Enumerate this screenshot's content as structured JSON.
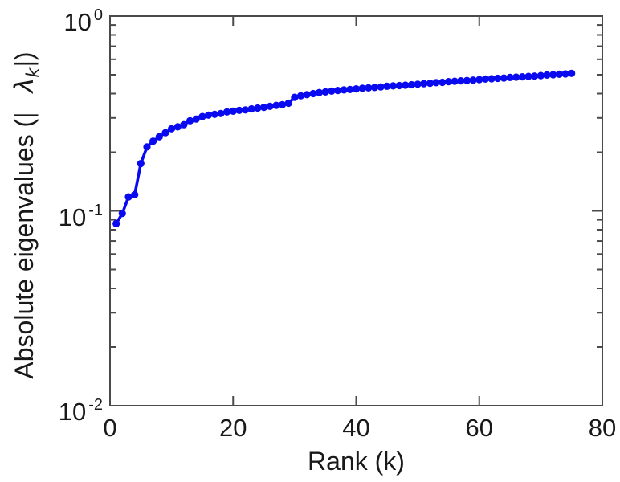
{
  "chart_data": {
    "type": "line",
    "title": "",
    "xlabel": "Rank (k)",
    "ylabel": "Absolute eigenvalues (|λ_k|)",
    "ylabel_parts": {
      "prefix": "Absolute eigenvalues (|",
      "symbol": "λ",
      "subscript": "k",
      "suffix": "|)"
    },
    "xscale": "linear",
    "yscale": "log",
    "xlim": [
      0,
      80
    ],
    "ylim": [
      0.01,
      1
    ],
    "grid": false,
    "legend": "none",
    "axis_color": "#4a4a4a",
    "text_color": "#191919",
    "xticks": [
      {
        "value": 0,
        "label": "0"
      },
      {
        "value": 20,
        "label": "20"
      },
      {
        "value": 40,
        "label": "40"
      },
      {
        "value": 60,
        "label": "60"
      },
      {
        "value": 80,
        "label": "80"
      }
    ],
    "yticks": [
      {
        "value": 1,
        "base": "10",
        "exp": "0"
      },
      {
        "value": 0.1,
        "base": "10",
        "exp": "-1"
      },
      {
        "value": 0.01,
        "base": "10",
        "exp": "-2"
      }
    ],
    "y_minor_ticks": [
      0.02,
      0.03,
      0.04,
      0.05,
      0.06,
      0.07,
      0.08,
      0.09,
      0.2,
      0.3,
      0.4,
      0.5,
      0.6,
      0.7,
      0.8,
      0.9
    ],
    "series": [
      {
        "name": "absolute-eigenvalues",
        "color": "#0a0af0",
        "marker": "filled-circle",
        "x": [
          1,
          2,
          3,
          4,
          5,
          6,
          7,
          8,
          9,
          10,
          11,
          12,
          13,
          14,
          15,
          16,
          17,
          18,
          19,
          20,
          21,
          22,
          23,
          24,
          25,
          26,
          27,
          28,
          29,
          30,
          31,
          32,
          33,
          34,
          35,
          36,
          37,
          38,
          39,
          40,
          41,
          42,
          43,
          44,
          45,
          46,
          47,
          48,
          49,
          50,
          51,
          52,
          53,
          54,
          55,
          56,
          57,
          58,
          59,
          60,
          61,
          62,
          63,
          64,
          65,
          66,
          67,
          68,
          69,
          70,
          71,
          72,
          73,
          74,
          75
        ],
        "values": [
          0.086,
          0.097,
          0.118,
          0.121,
          0.175,
          0.213,
          0.228,
          0.24,
          0.252,
          0.264,
          0.27,
          0.277,
          0.29,
          0.296,
          0.305,
          0.31,
          0.313,
          0.316,
          0.322,
          0.325,
          0.328,
          0.33,
          0.334,
          0.337,
          0.34,
          0.344,
          0.348,
          0.351,
          0.357,
          0.383,
          0.39,
          0.395,
          0.4,
          0.405,
          0.408,
          0.412,
          0.415,
          0.418,
          0.42,
          0.423,
          0.426,
          0.428,
          0.43,
          0.433,
          0.436,
          0.438,
          0.44,
          0.442,
          0.444,
          0.447,
          0.45,
          0.452,
          0.455,
          0.457,
          0.461,
          0.463,
          0.465,
          0.467,
          0.469,
          0.472,
          0.475,
          0.477,
          0.479,
          0.481,
          0.484,
          0.486,
          0.488,
          0.49,
          0.492,
          0.495,
          0.498,
          0.5,
          0.503,
          0.505,
          0.508
        ]
      }
    ]
  }
}
